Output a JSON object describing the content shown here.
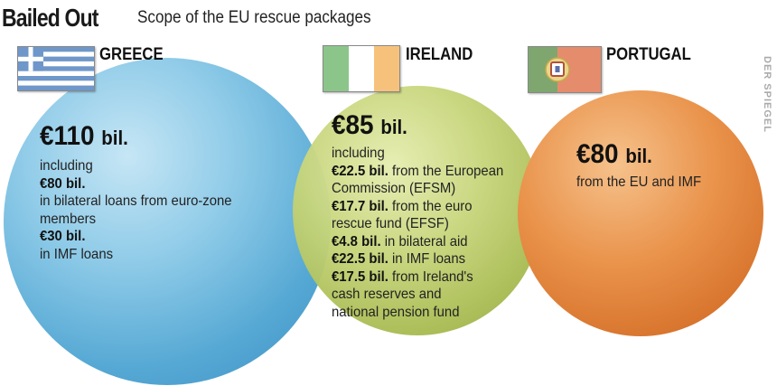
{
  "header": {
    "title": "Bailed Out",
    "subtitle": "Scope of the EU rescue packages"
  },
  "credit": "DER SPIEGEL",
  "colors": {
    "greece": "#55a8d4",
    "ireland": "#b5c55e",
    "portugal": "#e0823a"
  },
  "greece": {
    "name": "GREECE",
    "total": "€110",
    "total_unit": "bil.",
    "including": "including",
    "items": [
      {
        "amount": "€80 bil.",
        "text_lines": [
          "in bilateral loans from euro-zone",
          "members"
        ]
      },
      {
        "amount": "€30 bil.",
        "text_lines": [
          "in IMF loans"
        ]
      }
    ]
  },
  "ireland": {
    "name": "IRELAND",
    "total": "€85",
    "total_unit": "bil.",
    "including": "including",
    "items": [
      {
        "amount": "€22.5 bil.",
        "text": "from the European",
        "cont": "Commission (EFSM)"
      },
      {
        "amount": "€17.7 bil.",
        "text": "from the euro",
        "cont": "rescue fund (EFSF)"
      },
      {
        "amount": "€4.8 bil.",
        "text": "in bilateral aid",
        "cont": ""
      },
      {
        "amount": "€22.5 bil.",
        "text": "in IMF loans",
        "cont": ""
      },
      {
        "amount": "€17.5 bil.",
        "text": "from Ireland's",
        "cont": "cash reserves and",
        "cont2": "national pension fund"
      }
    ]
  },
  "portugal": {
    "name": "PORTUGAL",
    "total": "€80",
    "total_unit": "bil.",
    "detail": "from the EU and IMF"
  }
}
